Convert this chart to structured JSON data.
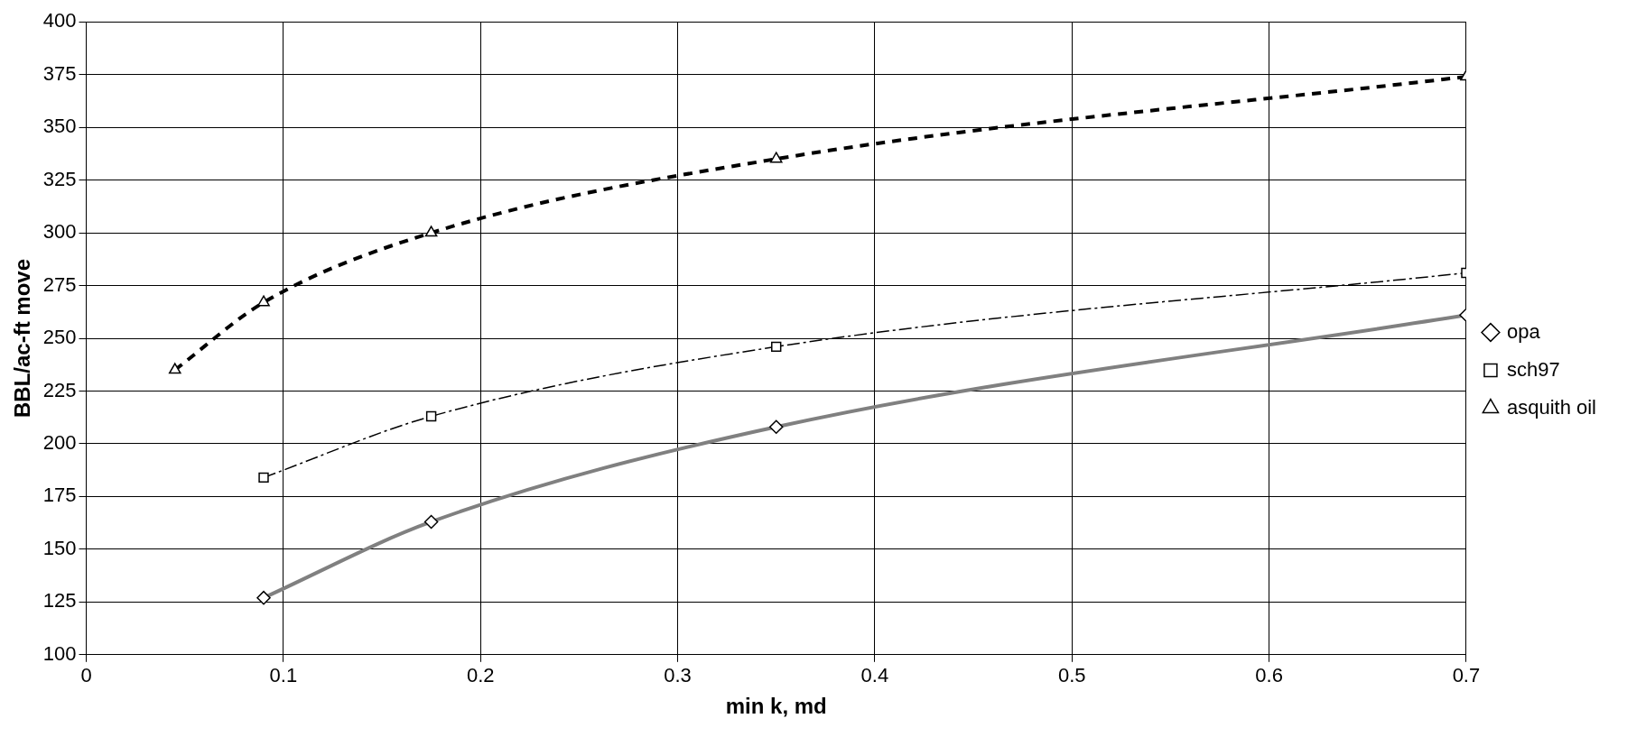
{
  "chart_data": {
    "type": "line",
    "xlabel": "min k, md",
    "ylabel": "BBL/ac-ft move",
    "xlim": [
      0,
      0.7
    ],
    "xticks": [
      0,
      0.1,
      0.2,
      0.3,
      0.4,
      0.5,
      0.6,
      0.7
    ],
    "ylim": [
      100,
      400
    ],
    "yticks": [
      100,
      125,
      150,
      175,
      200,
      225,
      250,
      275,
      300,
      325,
      350,
      375,
      400
    ],
    "grid": true,
    "legend": "right",
    "series": [
      {
        "name": "opa",
        "color": "#808080",
        "marker": "diamond",
        "line_style": "solid",
        "x": [
          0.09,
          0.175,
          0.35,
          0.7
        ],
        "values": [
          127,
          163,
          208,
          261
        ]
      },
      {
        "name": "sch97",
        "color": "#000000",
        "marker": "square",
        "line_style": "dashed",
        "x": [
          0.09,
          0.175,
          0.35,
          0.7
        ],
        "values": [
          184,
          213,
          246,
          281
        ]
      },
      {
        "name": "asquith oil",
        "color": "#000000",
        "marker": "triangle",
        "line_style": "dotted",
        "x": [
          0.045,
          0.09,
          0.175,
          0.35,
          0.7
        ],
        "values": [
          235,
          267,
          300,
          335,
          374
        ]
      }
    ]
  }
}
